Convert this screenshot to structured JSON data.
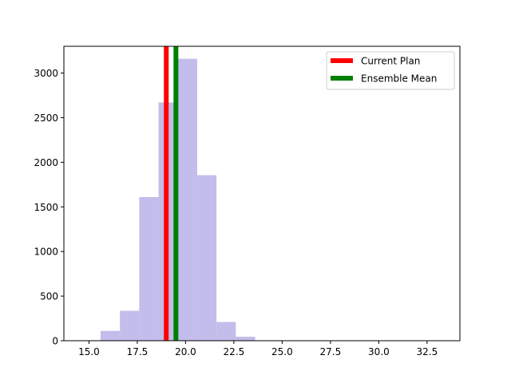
{
  "chart_data": {
    "type": "bar",
    "title": "",
    "xlabel": "",
    "ylabel": "",
    "xlim": [
      13.7,
      34.2
    ],
    "ylim": [
      0,
      3300
    ],
    "grid": false,
    "xticks": [
      15.0,
      17.5,
      20.0,
      22.5,
      25.0,
      27.5,
      30.0,
      32.5
    ],
    "xtick_labels": [
      "15.0",
      "17.5",
      "20.0",
      "22.5",
      "25.0",
      "27.5",
      "30.0",
      "32.5"
    ],
    "yticks": [
      0,
      500,
      1000,
      1500,
      2000,
      2500,
      3000
    ],
    "ytick_labels": [
      "0",
      "500",
      "1000",
      "1500",
      "2000",
      "2500",
      "3000"
    ],
    "histogram": {
      "bin_width": 1.0,
      "color": "#c2bdea",
      "bins": [
        {
          "left": 14.6,
          "count": 5
        },
        {
          "left": 15.6,
          "count": 110
        },
        {
          "left": 16.6,
          "count": 335
        },
        {
          "left": 17.6,
          "count": 1610
        },
        {
          "left": 18.6,
          "count": 2670
        },
        {
          "left": 19.6,
          "count": 3160
        },
        {
          "left": 20.6,
          "count": 1855
        },
        {
          "left": 21.6,
          "count": 210
        },
        {
          "left": 22.6,
          "count": 45
        },
        {
          "left": 23.6,
          "count": 3
        },
        {
          "left": 24.6,
          "count": 1
        },
        {
          "left": 25.6,
          "count": 0
        },
        {
          "left": 26.6,
          "count": 0
        },
        {
          "left": 27.6,
          "count": 0
        },
        {
          "left": 28.6,
          "count": 0
        },
        {
          "left": 29.6,
          "count": 0
        },
        {
          "left": 30.6,
          "count": 0
        },
        {
          "left": 31.6,
          "count": 0
        },
        {
          "left": 32.6,
          "count": 1
        }
      ]
    },
    "vlines": [
      {
        "name": "Current Plan",
        "x": 19.0,
        "color": "#ff0000"
      },
      {
        "name": "Ensemble Mean",
        "x": 19.5,
        "color": "#008000"
      }
    ],
    "legend": {
      "placement": "top-right",
      "entries": [
        {
          "label": "Current Plan",
          "color": "#ff0000"
        },
        {
          "label": "Ensemble Mean",
          "color": "#008000"
        }
      ]
    }
  }
}
